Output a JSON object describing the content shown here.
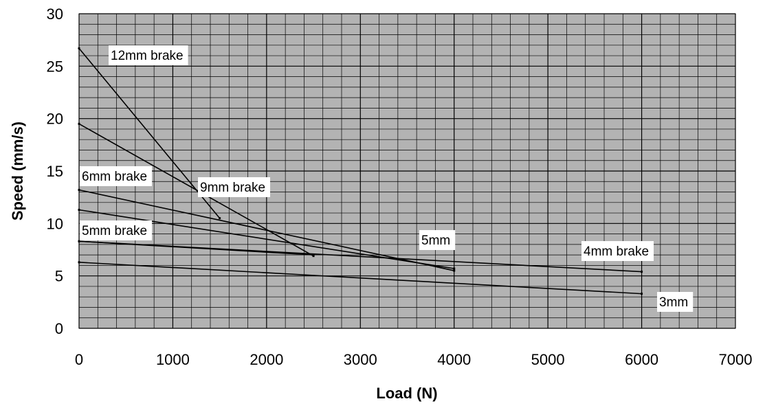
{
  "chart_data": {
    "type": "line",
    "title": "",
    "xlabel": "Load (N)",
    "ylabel": "Speed (mm/s)",
    "xlim": [
      0,
      7000
    ],
    "ylim": [
      0,
      30
    ],
    "x_ticks": [
      "0",
      "1000",
      "2000",
      "3000",
      "4000",
      "5000",
      "6000",
      "7000"
    ],
    "y_ticks": [
      "0",
      "5",
      "10",
      "15",
      "20",
      "25",
      "30"
    ],
    "grid": true,
    "legend": "none",
    "plot_background": "#b3b3b3",
    "line_color": "#000000",
    "series": [
      {
        "name": "12mm brake",
        "x": [
          0,
          1500
        ],
        "y": [
          26.7,
          10.5
        ]
      },
      {
        "name": "9mm brake",
        "x": [
          0,
          2500
        ],
        "y": [
          19.5,
          6.9
        ]
      },
      {
        "name": "6mm brake",
        "x": [
          0,
          4000
        ],
        "y": [
          13.2,
          5.5
        ]
      },
      {
        "name": "5mm",
        "x": [
          0,
          4000
        ],
        "y": [
          11.3,
          5.7
        ]
      },
      {
        "name": "5mm brake",
        "x": [
          0,
          2500
        ],
        "y": [
          8.3,
          7.0
        ]
      },
      {
        "name": "4mm brake",
        "x": [
          0,
          6000
        ],
        "y": [
          8.3,
          5.4
        ]
      },
      {
        "name": "3mm",
        "x": [
          0,
          6000
        ],
        "y": [
          6.3,
          3.3
        ]
      }
    ]
  }
}
